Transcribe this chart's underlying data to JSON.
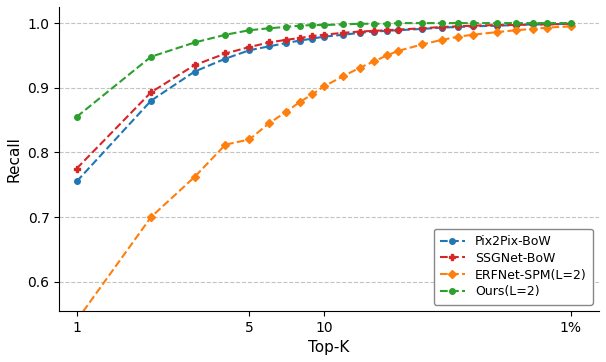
{
  "title": "",
  "xlabel": "Top-K",
  "ylabel": "Recall",
  "ylim": [
    0.555,
    1.025
  ],
  "yticks": [
    0.6,
    0.7,
    0.8,
    0.9,
    1.0
  ],
  "series": {
    "Pix2Pix-BoW": {
      "color": "#1f77b4",
      "marker": "o",
      "linestyle": "--",
      "values_x": [
        1,
        2,
        3,
        4,
        5,
        6,
        7,
        8,
        9,
        10,
        12,
        14,
        16,
        18,
        20,
        25,
        30,
        35,
        40,
        50,
        60,
        70,
        80,
        100
      ],
      "values_y": [
        0.755,
        0.88,
        0.925,
        0.945,
        0.958,
        0.964,
        0.969,
        0.973,
        0.976,
        0.979,
        0.982,
        0.985,
        0.987,
        0.988,
        0.989,
        0.991,
        0.993,
        0.994,
        0.995,
        0.996,
        0.997,
        0.998,
        0.998,
        0.999
      ]
    },
    "SSGNet-BoW": {
      "color": "#d62728",
      "marker": "P",
      "linestyle": "--",
      "values_x": [
        1,
        2,
        3,
        4,
        5,
        6,
        7,
        8,
        9,
        10,
        12,
        14,
        16,
        18,
        20,
        25,
        30,
        35,
        40,
        50,
        60,
        70,
        80,
        100
      ],
      "values_y": [
        0.775,
        0.893,
        0.935,
        0.953,
        0.963,
        0.97,
        0.974,
        0.977,
        0.98,
        0.982,
        0.985,
        0.987,
        0.988,
        0.989,
        0.99,
        0.992,
        0.994,
        0.995,
        0.996,
        0.997,
        0.997,
        0.998,
        0.998,
        0.999
      ]
    },
    "ERFNet-SPM(L=2)": {
      "color": "#ff7f0e",
      "marker": "D",
      "linestyle": "--",
      "values_x": [
        1,
        2,
        3,
        4,
        5,
        6,
        7,
        8,
        9,
        10,
        12,
        14,
        16,
        18,
        20,
        25,
        30,
        35,
        40,
        50,
        60,
        70,
        80,
        100
      ],
      "values_y": [
        0.54,
        0.7,
        0.762,
        0.812,
        0.82,
        0.845,
        0.862,
        0.878,
        0.89,
        0.902,
        0.918,
        0.931,
        0.941,
        0.95,
        0.957,
        0.967,
        0.974,
        0.979,
        0.982,
        0.986,
        0.989,
        0.991,
        0.993,
        0.995
      ]
    },
    "Ours(L=2)": {
      "color": "#2ca02c",
      "marker": "o",
      "linestyle": "--",
      "values_x": [
        1,
        2,
        3,
        4,
        5,
        6,
        7,
        8,
        9,
        10,
        12,
        14,
        16,
        18,
        20,
        25,
        30,
        35,
        40,
        50,
        60,
        70,
        80,
        100
      ],
      "values_y": [
        0.855,
        0.948,
        0.97,
        0.982,
        0.989,
        0.992,
        0.994,
        0.996,
        0.997,
        0.997,
        0.998,
        0.999,
        0.999,
        0.999,
        1.0,
        1.0,
        1.0,
        1.0,
        1.0,
        1.0,
        1.0,
        1.0,
        1.0,
        1.0
      ]
    }
  },
  "xlim": [
    0.85,
    130
  ],
  "xticks": [
    1,
    5,
    10,
    100
  ],
  "xticklabels": [
    "1",
    "5",
    "10",
    "1%"
  ],
  "background_color": "#ffffff",
  "grid_color": "#aaaaaa",
  "legend_loc": "lower right",
  "legend_bbox": null,
  "figsize": [
    6.06,
    3.62
  ],
  "dpi": 100
}
